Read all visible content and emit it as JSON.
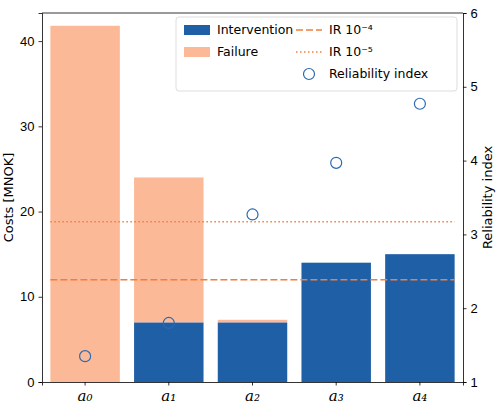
{
  "chart_data": {
    "type": "bar",
    "stacked": true,
    "categories": [
      "a₀",
      "a₁",
      "a₂",
      "a₃",
      "a₄"
    ],
    "y_label": "Costs [MNOK]",
    "y2_label": "Reliability index",
    "ylim": [
      0,
      43.3
    ],
    "yticks": [
      0,
      10,
      20,
      30,
      40
    ],
    "y2lim": [
      1,
      6
    ],
    "y2ticks": [
      1,
      2,
      3,
      4,
      5,
      6
    ],
    "legend": "upper right",
    "series": [
      {
        "name": "Intervention",
        "type": "bar",
        "color": "#1f5fa6",
        "values": [
          0,
          7,
          7,
          14,
          15
        ]
      },
      {
        "name": "Failure",
        "type": "bar",
        "color": "#fcb997",
        "values": [
          41.8,
          17,
          0.3,
          0,
          0
        ]
      },
      {
        "name": "IR 10⁻⁴",
        "type": "line",
        "color": "#f07f3c",
        "line_style": "dashed",
        "values": [
          12,
          12,
          12,
          12,
          12
        ]
      },
      {
        "name": "IR 10⁻⁵",
        "type": "line",
        "color": "#f07f3c",
        "line_style": "dotted",
        "values": [
          18.8,
          18.8,
          18.8,
          18.8,
          18.8
        ]
      },
      {
        "name": "Reliability index",
        "type": "scatter",
        "axis": "y2",
        "color": "#2a6ab0",
        "marker": "open_circle",
        "values": [
          1.35,
          1.8,
          3.27,
          3.97,
          4.77
        ]
      }
    ]
  }
}
